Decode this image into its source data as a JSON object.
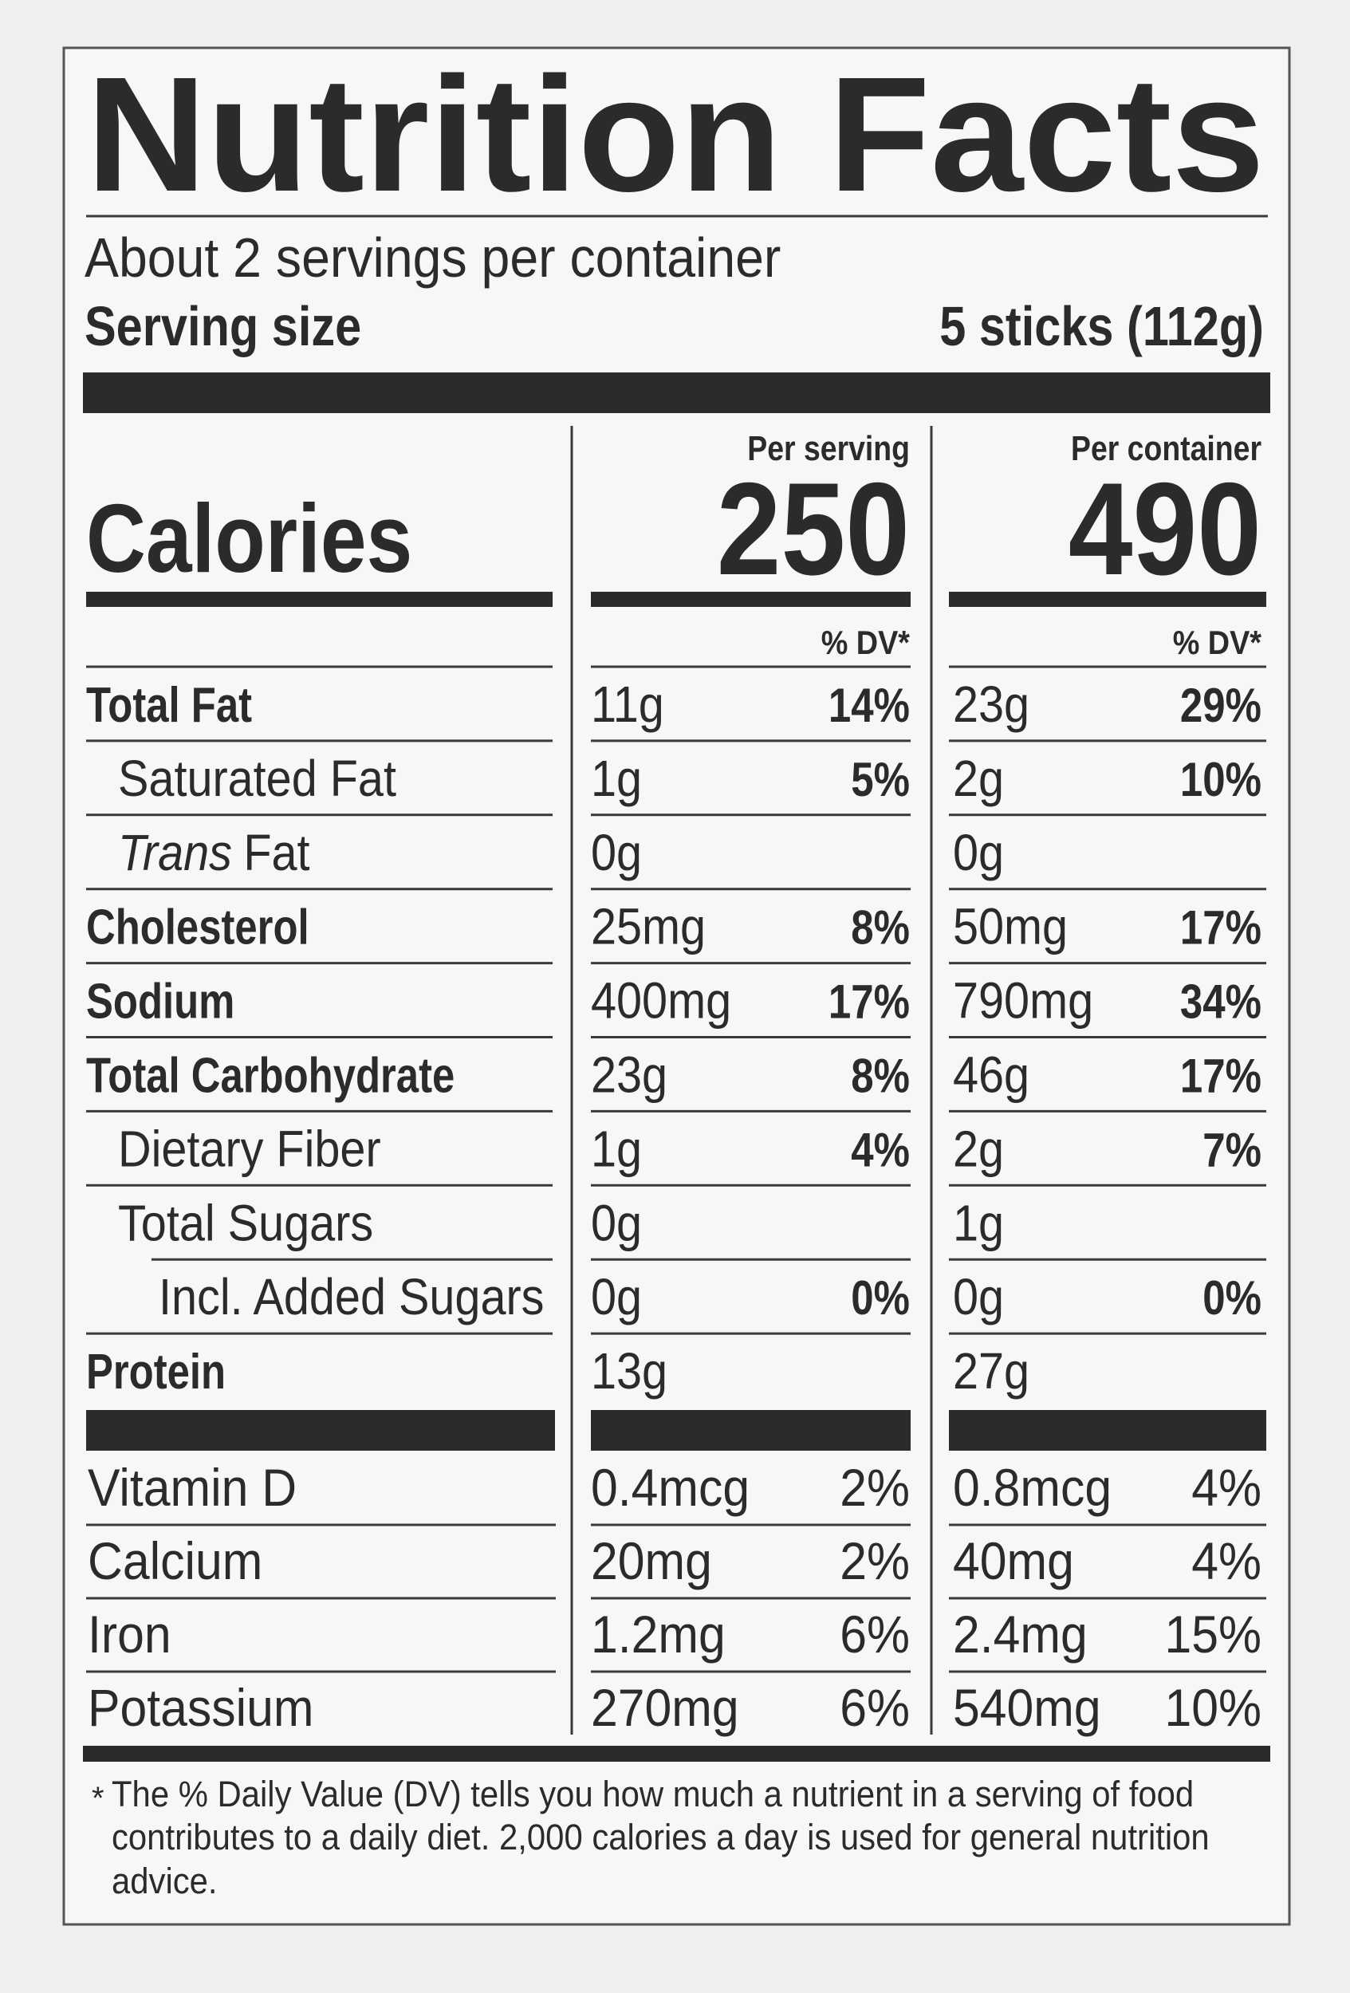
{
  "header": {
    "title": "Nutrition Facts",
    "servings": "About 2 servings per container",
    "serving_size_label": "Serving size",
    "serving_size": "5 sticks (112g)"
  },
  "calories": {
    "label": "Calories",
    "columns": [
      {
        "heading": "Per serving",
        "value": "250"
      },
      {
        "heading": "Per container",
        "value": "490"
      }
    ]
  },
  "dv_header": "% DV*",
  "nutrients": [
    {
      "name": "Total Fat",
      "per_serving": {
        "amount": "11g",
        "dv": "14%"
      },
      "per_container": {
        "amount": "23g",
        "dv": "29%"
      }
    },
    {
      "name": "Saturated Fat",
      "per_serving": {
        "amount": "1g",
        "dv": "5%"
      },
      "per_container": {
        "amount": "2g",
        "dv": "10%"
      }
    },
    {
      "name_italic": "Trans",
      "name": "Fat",
      "per_serving": {
        "amount": "0g"
      },
      "per_container": {
        "amount": "0g"
      }
    },
    {
      "name": "Cholesterol",
      "per_serving": {
        "amount": "25mg",
        "dv": "8%"
      },
      "per_container": {
        "amount": "50mg",
        "dv": "17%"
      }
    },
    {
      "name": "Sodium",
      "per_serving": {
        "amount": "400mg",
        "dv": "17%"
      },
      "per_container": {
        "amount": "790mg",
        "dv": "34%"
      }
    },
    {
      "name": "Total Carbohydrate",
      "per_serving": {
        "amount": "23g",
        "dv": "8%"
      },
      "per_container": {
        "amount": "46g",
        "dv": "17%"
      }
    },
    {
      "name": "Dietary Fiber",
      "per_serving": {
        "amount": "1g",
        "dv": "4%"
      },
      "per_container": {
        "amount": "2g",
        "dv": "7%"
      }
    },
    {
      "name": "Total Sugars",
      "per_serving": {
        "amount": "0g"
      },
      "per_container": {
        "amount": "1g"
      }
    },
    {
      "name": "Incl. Added Sugars",
      "per_serving": {
        "amount": "0g",
        "dv": "0%"
      },
      "per_container": {
        "amount": "0g",
        "dv": "0%"
      }
    },
    {
      "name": "Protein",
      "per_serving": {
        "amount": "13g"
      },
      "per_container": {
        "amount": "27g"
      }
    }
  ],
  "vitamins": [
    {
      "name": "Vitamin D",
      "per_serving": {
        "amount": "0.4mcg",
        "dv": "2%"
      },
      "per_container": {
        "amount": "0.8mcg",
        "dv": "4%"
      }
    },
    {
      "name": "Calcium",
      "per_serving": {
        "amount": "20mg",
        "dv": "2%"
      },
      "per_container": {
        "amount": "40mg",
        "dv": "4%"
      }
    },
    {
      "name": "Iron",
      "per_serving": {
        "amount": "1.2mg",
        "dv": "6%"
      },
      "per_container": {
        "amount": "2.4mg",
        "dv": "15%"
      }
    },
    {
      "name": "Potassium",
      "per_serving": {
        "amount": "270mg",
        "dv": "6%"
      },
      "per_container": {
        "amount": "540mg",
        "dv": "10%"
      }
    }
  ],
  "footnote": [
    "*",
    "The % Daily Value (DV) tells you how much a nutrient in a serving of food",
    "contributes to a daily diet. 2,000 calories a day is used for general nutrition",
    "advice."
  ]
}
